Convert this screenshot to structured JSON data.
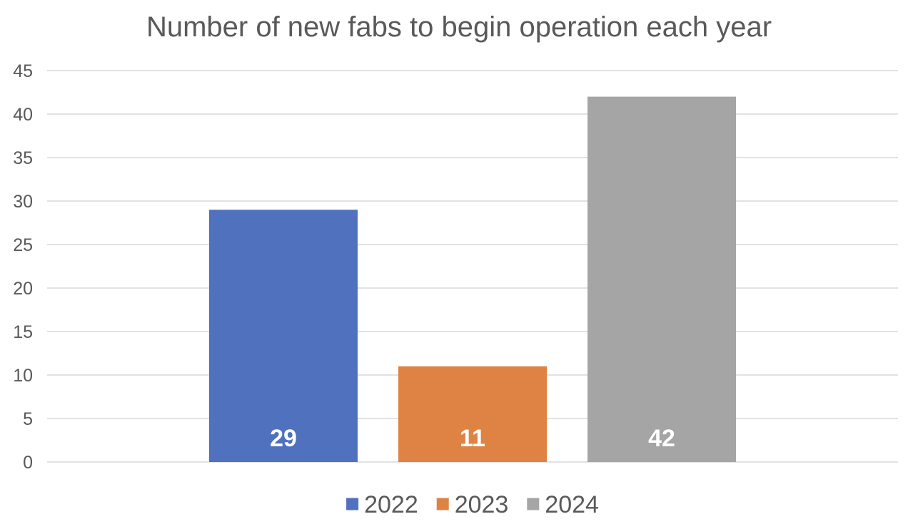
{
  "chart_data": {
    "type": "bar",
    "title": "Number of new fabs to begin operation each year",
    "xlabel": "",
    "ylabel": "",
    "ylim": [
      0,
      45
    ],
    "yticks": [
      0,
      5,
      10,
      15,
      20,
      25,
      30,
      35,
      40,
      45
    ],
    "grid": true,
    "legend_position": "bottom",
    "show_data_labels": true,
    "series": [
      {
        "name": "2022",
        "value": 29,
        "color": "#4f71be"
      },
      {
        "name": "2023",
        "value": 11,
        "color": "#de8344"
      },
      {
        "name": "2024",
        "value": 42,
        "color": "#a5a5a5"
      }
    ]
  }
}
